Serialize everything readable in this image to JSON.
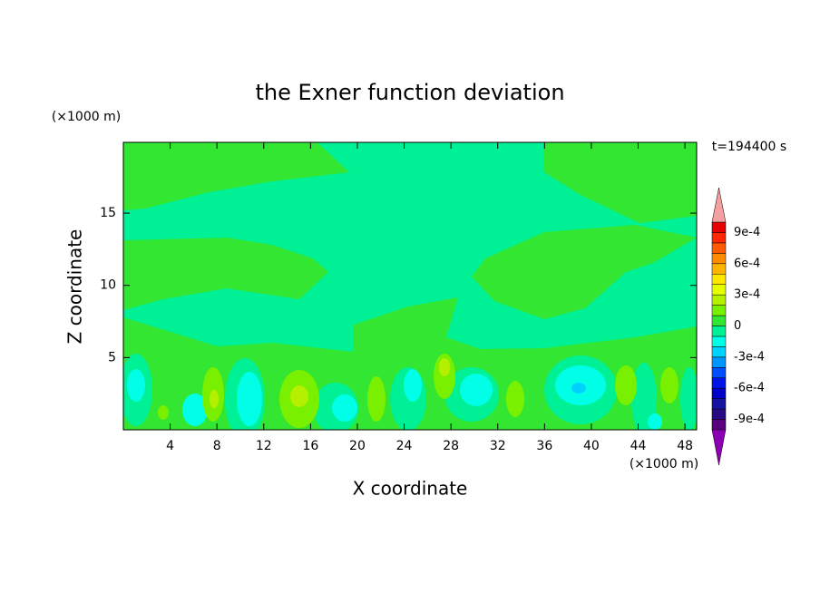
{
  "chart_data": {
    "type": "contour",
    "title": "the Exner function deviation",
    "x_label": "X coordinate",
    "y_label": "Z coordinate",
    "x_unit": "(×1000 m)",
    "y_unit": "(×1000 m)",
    "annotation": "t=194400 s",
    "xlim": [
      0,
      49
    ],
    "ylim": [
      0,
      19.9
    ],
    "xticks": [
      4,
      8,
      12,
      16,
      20,
      24,
      28,
      32,
      36,
      40,
      44,
      48
    ],
    "yticks": [
      5,
      10,
      15
    ],
    "levels": [
      -0.001,
      -0.0009,
      -0.0008,
      -0.0007,
      -0.0006,
      -0.0005,
      -0.0004,
      -0.0003,
      -0.0002,
      -0.0001,
      0,
      0.0001,
      0.0002,
      0.0003,
      0.0004,
      0.0005,
      0.0006,
      0.0007,
      0.0008,
      0.0009,
      0.001
    ],
    "colors": [
      "#5a007f",
      "#280a82",
      "#1414a0",
      "#0000c8",
      "#0014e6",
      "#0050ff",
      "#0096ff",
      "#00d2ff",
      "#00ffe6",
      "#00f096",
      "#32e632",
      "#78f000",
      "#b4f000",
      "#e6ff00",
      "#ffe600",
      "#ffb400",
      "#ff8c00",
      "#ff5a00",
      "#ff2800",
      "#e60000"
    ],
    "extend_colors": [
      "#8c00b4",
      "#f5a0a0"
    ],
    "colorbar_ticks": [
      {
        "value": -0.0009,
        "label": "-9e-4"
      },
      {
        "value": -0.0006,
        "label": "-6e-4"
      },
      {
        "value": -0.0003,
        "label": "-3e-4"
      },
      0,
      {
        "value": 0.0003,
        "label": "3e-4"
      },
      {
        "value": 0.0006,
        "label": "6e-4"
      },
      {
        "value": 0.0009,
        "label": "9e-4"
      }
    ]
  }
}
